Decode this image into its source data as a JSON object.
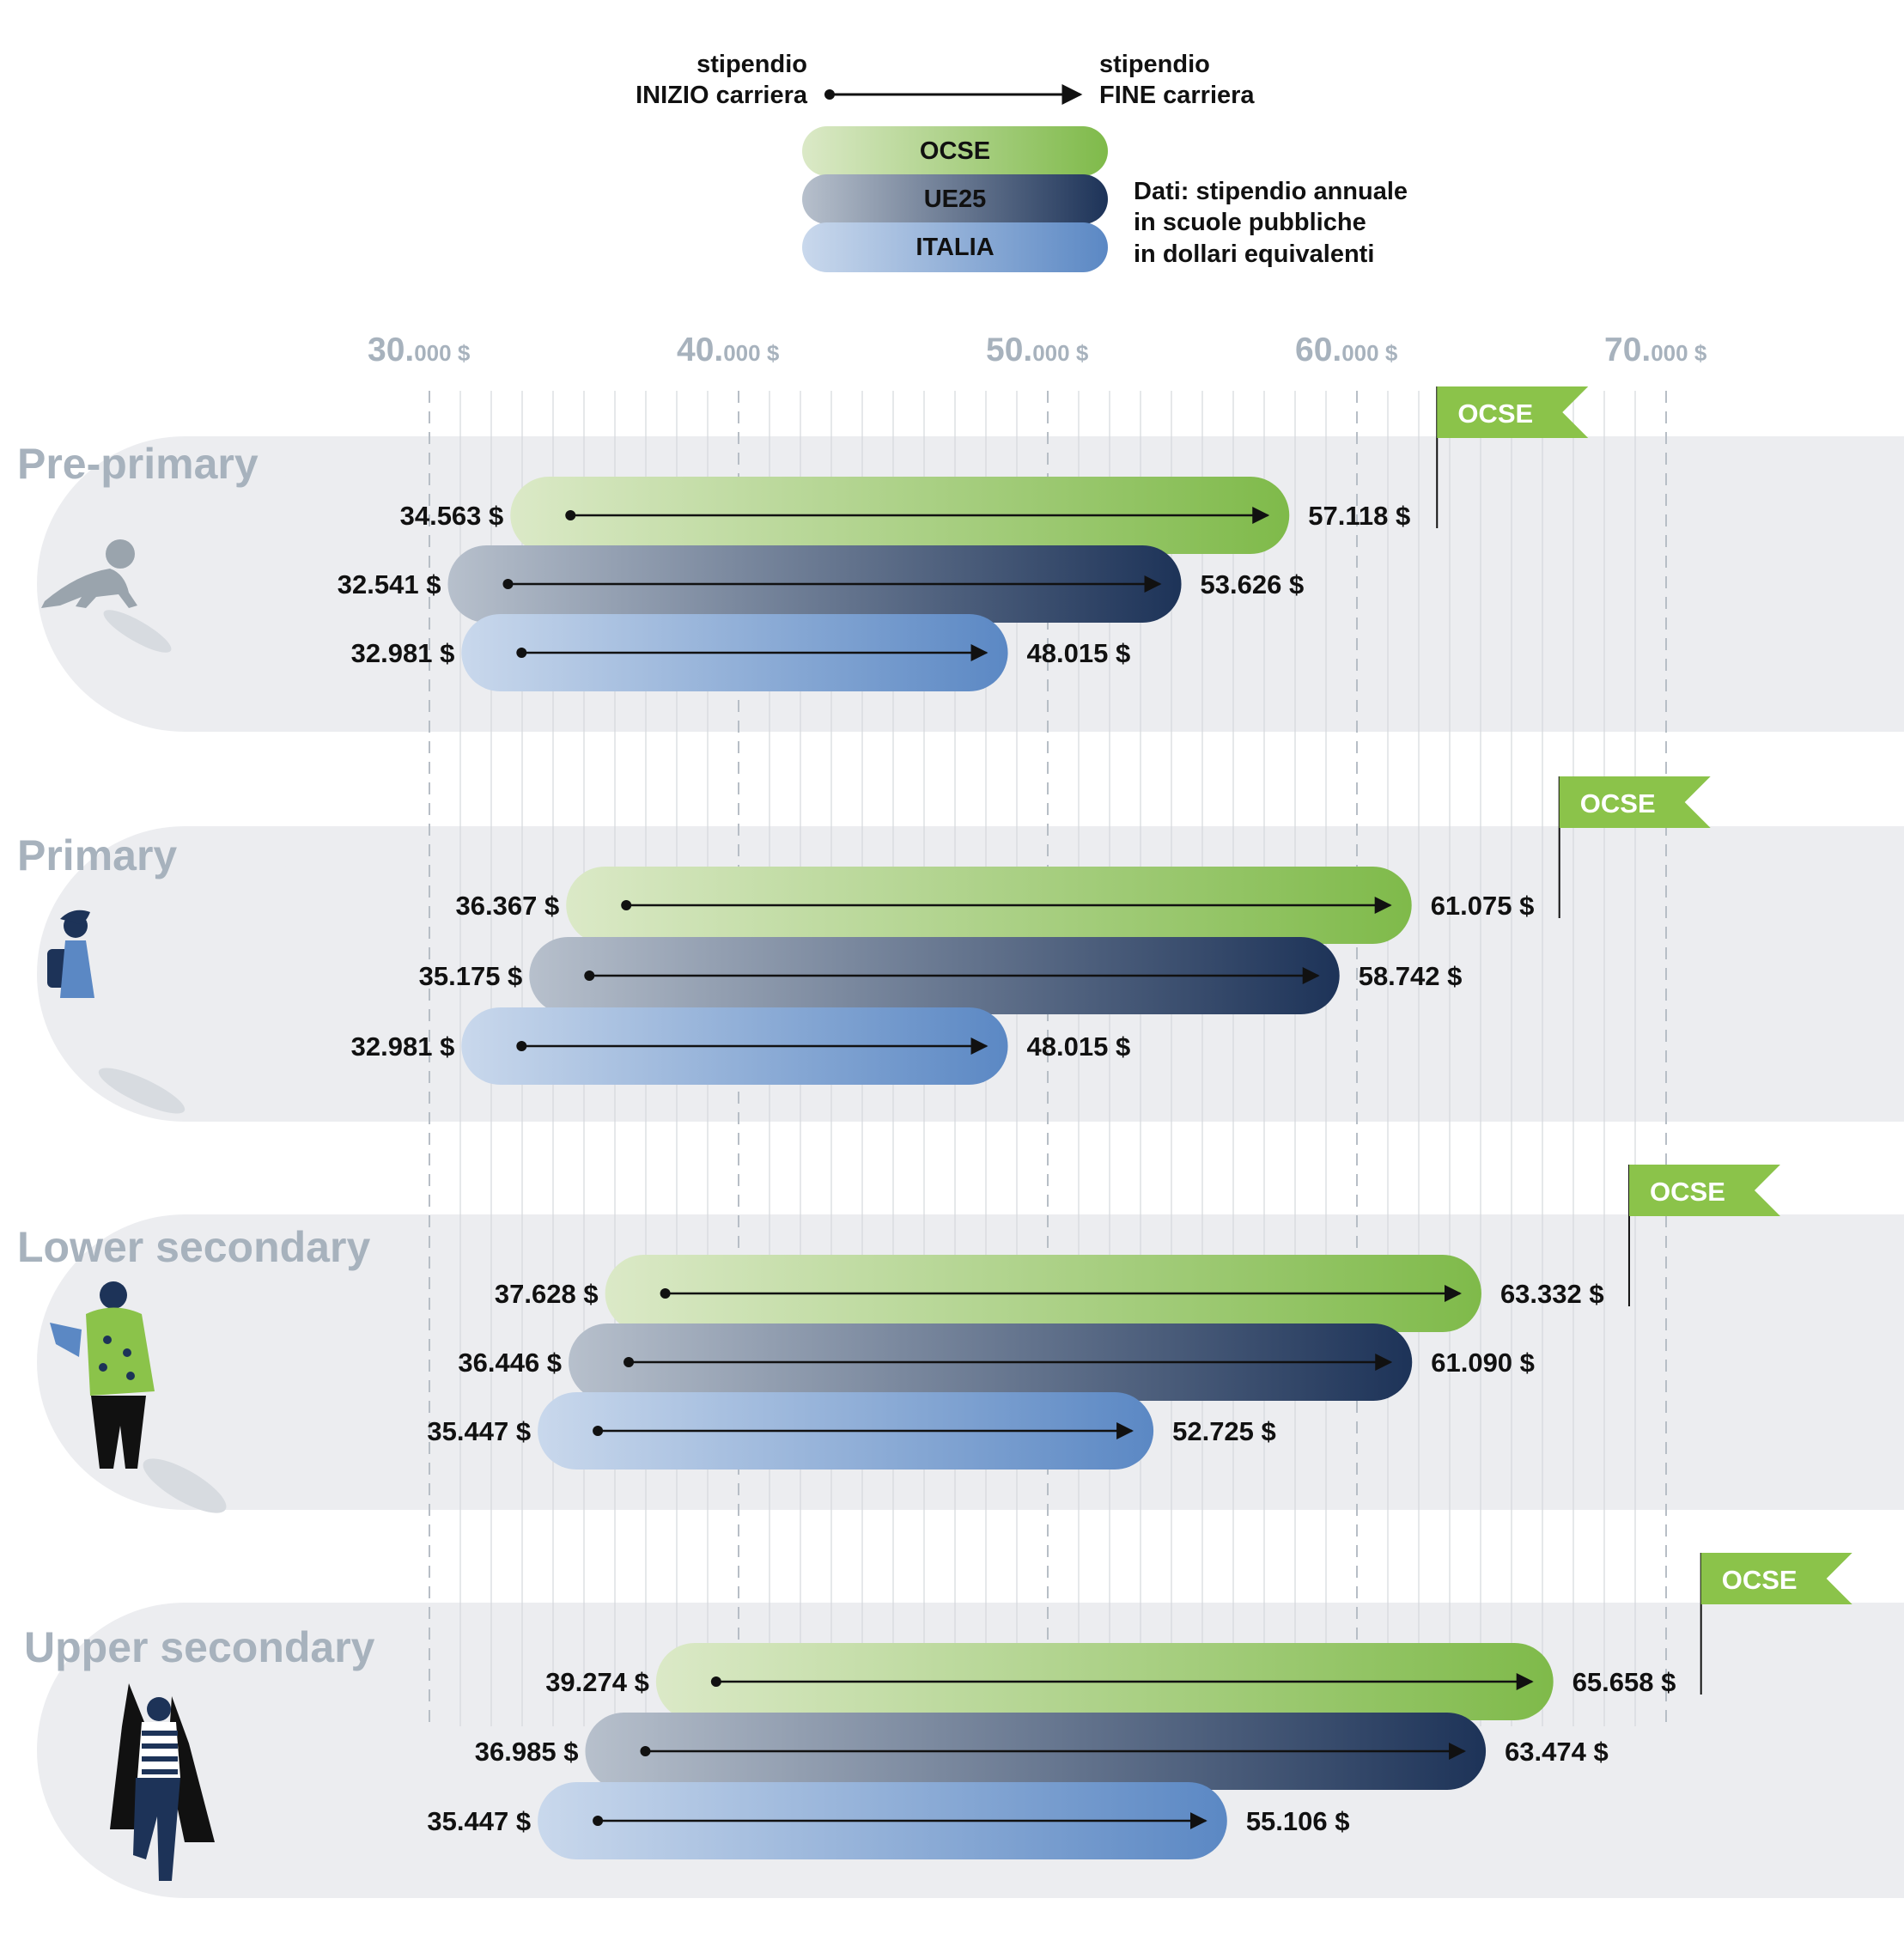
{
  "legend": {
    "start_label_line1": "stipendio",
    "start_label_line2": "INIZIO carriera",
    "end_label_line1": "stipendio",
    "end_label_line2": "FINE carriera",
    "series_labels": [
      "OCSE",
      "UE25",
      "ITALIA"
    ],
    "note_lines": [
      "Dati: stipendio annuale",
      "in scuole pubbliche",
      "in dollari equivalenti"
    ]
  },
  "flag_label": "OCSE",
  "colors": {
    "ocse_light": "#dbe9c7",
    "ocse_dark": "#7fba4a",
    "ue25_light": "#b7c0cc",
    "ue25_dark": "#1d3358",
    "italia_light": "#c9d8ec",
    "italia_dark": "#5b88c4",
    "band": "#ecedf0",
    "axis_text": "#a7b2bd",
    "flag": "#8bc34a"
  },
  "chart_data": {
    "type": "range-bar",
    "title": "",
    "axis": {
      "min": 30000,
      "max": 70000,
      "ticks": [
        {
          "number": "30.",
          "unit": "000 $"
        },
        {
          "number": "40.",
          "unit": "000 $"
        },
        {
          "number": "50.",
          "unit": "000 $"
        },
        {
          "number": "60.",
          "unit": "000 $"
        },
        {
          "number": "70.",
          "unit": "000 $"
        }
      ],
      "tick_values": [
        30000,
        40000,
        50000,
        60000,
        70000
      ],
      "minor_step": 1000
    },
    "series_names": [
      "OCSE",
      "UE25",
      "ITALIA"
    ],
    "groups": [
      {
        "name": "Pre-primary",
        "bars": [
          {
            "series": "OCSE",
            "start": 34563,
            "end": 57118,
            "start_label": "34.563 $",
            "end_label": "57.118 $"
          },
          {
            "series": "UE25",
            "start": 32541,
            "end": 53626,
            "start_label": "32.541 $",
            "end_label": "53.626 $"
          },
          {
            "series": "ITALIA",
            "start": 32981,
            "end": 48015,
            "start_label": "32.981 $",
            "end_label": "48.015 $"
          }
        ]
      },
      {
        "name": "Primary",
        "bars": [
          {
            "series": "OCSE",
            "start": 36367,
            "end": 61075,
            "start_label": "36.367 $",
            "end_label": "61.075 $"
          },
          {
            "series": "UE25",
            "start": 35175,
            "end": 58742,
            "start_label": "35.175 $",
            "end_label": "58.742 $"
          },
          {
            "series": "ITALIA",
            "start": 32981,
            "end": 48015,
            "start_label": "32.981 $",
            "end_label": "48.015 $"
          }
        ]
      },
      {
        "name": "Lower secondary",
        "bars": [
          {
            "series": "OCSE",
            "start": 37628,
            "end": 63332,
            "start_label": "37.628 $",
            "end_label": "63.332 $"
          },
          {
            "series": "UE25",
            "start": 36446,
            "end": 61090,
            "start_label": "36.446 $",
            "end_label": "61.090 $"
          },
          {
            "series": "ITALIA",
            "start": 35447,
            "end": 52725,
            "start_label": "35.447 $",
            "end_label": "52.725 $"
          }
        ]
      },
      {
        "name": "Upper secondary",
        "bars": [
          {
            "series": "OCSE",
            "start": 39274,
            "end": 65658,
            "start_label": "39.274 $",
            "end_label": "65.658 $"
          },
          {
            "series": "UE25",
            "start": 36985,
            "end": 63474,
            "start_label": "36.985 $",
            "end_label": "63.474 $"
          },
          {
            "series": "ITALIA",
            "start": 35447,
            "end": 55106,
            "start_label": "35.447 $",
            "end_label": "55.106 $"
          }
        ]
      }
    ]
  }
}
